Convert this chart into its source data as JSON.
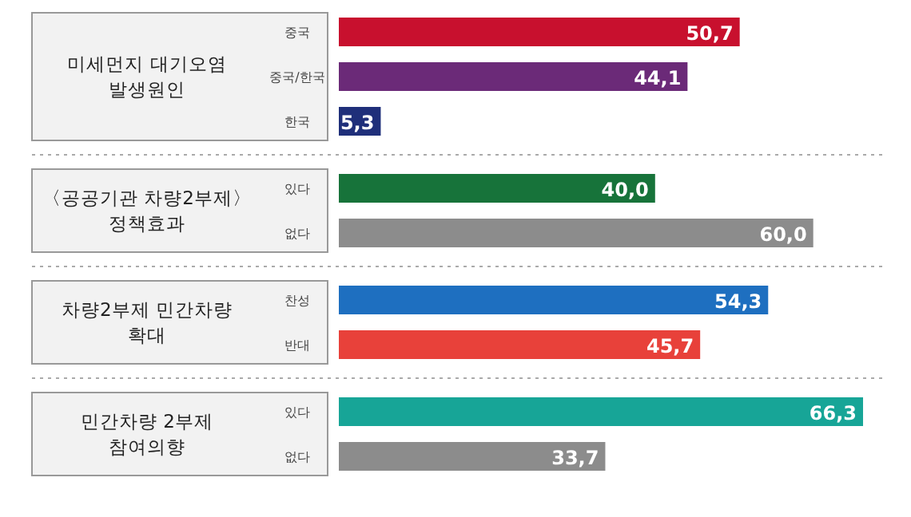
{
  "chart_data": [
    {
      "type": "bar",
      "orientation": "horizontal",
      "title": "미세먼지 대기오염 발생원인",
      "categories": [
        "중국",
        "중국/한국",
        "한국"
      ],
      "values": [
        50.7,
        44.1,
        5.3
      ],
      "colors": [
        "#c8102e",
        "#6b2a78",
        "#1f2f7a"
      ],
      "value_labels": [
        "50,7",
        "44,1",
        "5,3"
      ]
    },
    {
      "type": "bar",
      "orientation": "horizontal",
      "title": "〈공공기관 차량2부제〉 정책효과",
      "categories": [
        "있다",
        "없다"
      ],
      "values": [
        40.0,
        60.0
      ],
      "colors": [
        "#17733a",
        "#8c8c8c"
      ],
      "value_labels": [
        "40,0",
        "60,0"
      ]
    },
    {
      "type": "bar",
      "orientation": "horizontal",
      "title": "차량2부제 민간차량 확대",
      "categories": [
        "찬성",
        "반대"
      ],
      "values": [
        54.3,
        45.7
      ],
      "colors": [
        "#1e6fc0",
        "#e8413a"
      ],
      "value_labels": [
        "54,3",
        "45,7"
      ]
    },
    {
      "type": "bar",
      "orientation": "horizontal",
      "title": "민간차량 2부제 참여의향",
      "categories": [
        "있다",
        "없다"
      ],
      "values": [
        66.3,
        33.7
      ],
      "colors": [
        "#17a597",
        "#8c8c8c"
      ],
      "value_labels": [
        "66,3",
        "33,7"
      ]
    }
  ]
}
